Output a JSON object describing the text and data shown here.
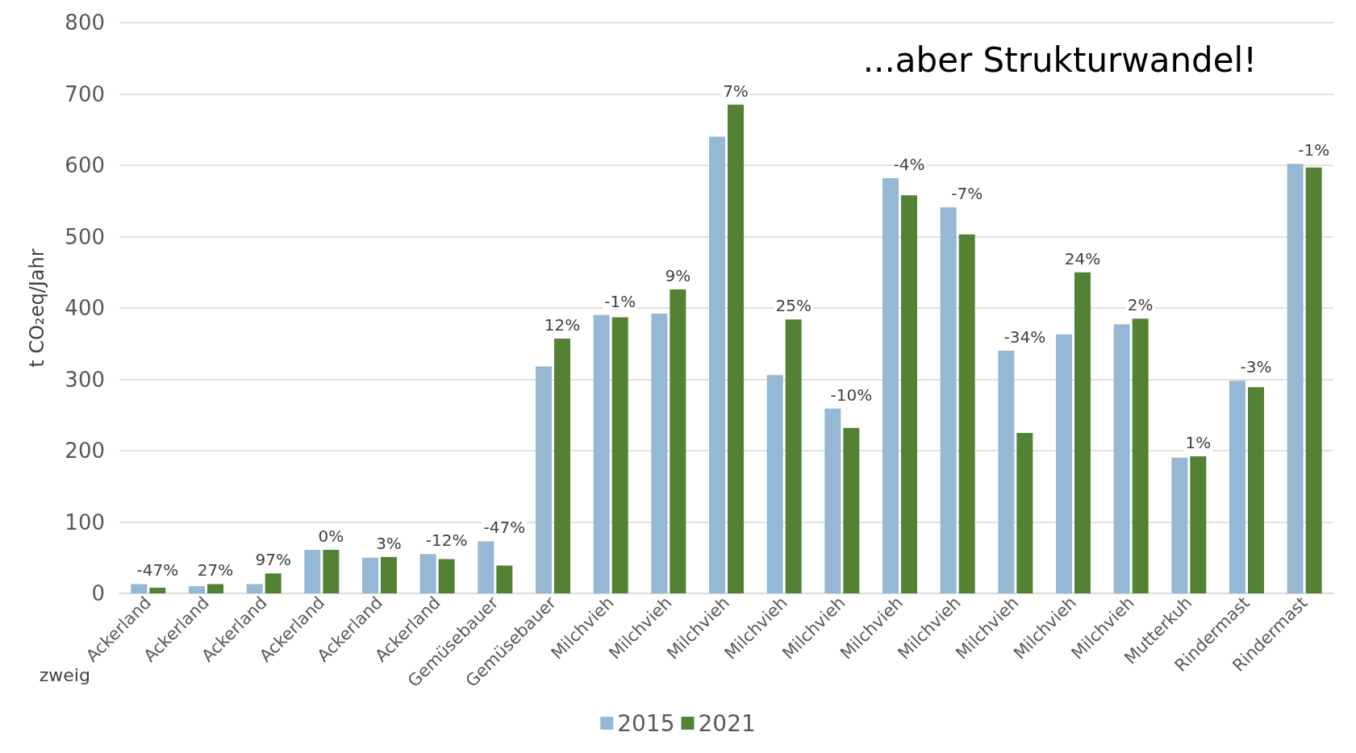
{
  "chart_data": {
    "type": "bar",
    "title": "...aber Strukturwandel!",
    "xlabel": "zweig",
    "ylabel": "t CO₂eq/Jahr",
    "categories": [
      "Ackerland",
      "Ackerland",
      "Ackerland",
      "Ackerland",
      "Ackerland",
      "Ackerland",
      "Gemüsebauer",
      "Gemüsebauer",
      "Milchvieh",
      "Milchvieh",
      "Milchvieh",
      "Milchvieh",
      "Milchvieh",
      "Milchvieh",
      "Milchvieh",
      "Milchvieh",
      "Milchvieh",
      "Milchvieh",
      "Mutterkuh",
      "Rindermast",
      "Rindermast"
    ],
    "series": [
      {
        "name": "2015",
        "color": "#95b8d5",
        "values": [
          13,
          10,
          13,
          61,
          50,
          55,
          73,
          318,
          390,
          392,
          640,
          306,
          259,
          582,
          541,
          340,
          363,
          377,
          190,
          298,
          602
        ]
      },
      {
        "name": "2021",
        "color": "#548235",
        "values": [
          8,
          13,
          28,
          61,
          51,
          48,
          39,
          357,
          387,
          426,
          685,
          384,
          232,
          558,
          503,
          225,
          450,
          385,
          192,
          289,
          597
        ]
      }
    ],
    "annotations": [
      "-47%",
      "27%",
      "97%",
      "0%",
      "3%",
      "-12%",
      "-47%",
      "12%",
      "-1%",
      "9%",
      "7%",
      "25%",
      "-10%",
      "-4%",
      "-7%",
      "-34%",
      "24%",
      "2%",
      "1%",
      "-3%",
      "-1%"
    ],
    "ylim": [
      0,
      800
    ],
    "yticks": [
      0,
      100,
      200,
      300,
      400,
      500,
      600,
      700,
      800
    ],
    "grid": "y",
    "legend": "bottom"
  }
}
